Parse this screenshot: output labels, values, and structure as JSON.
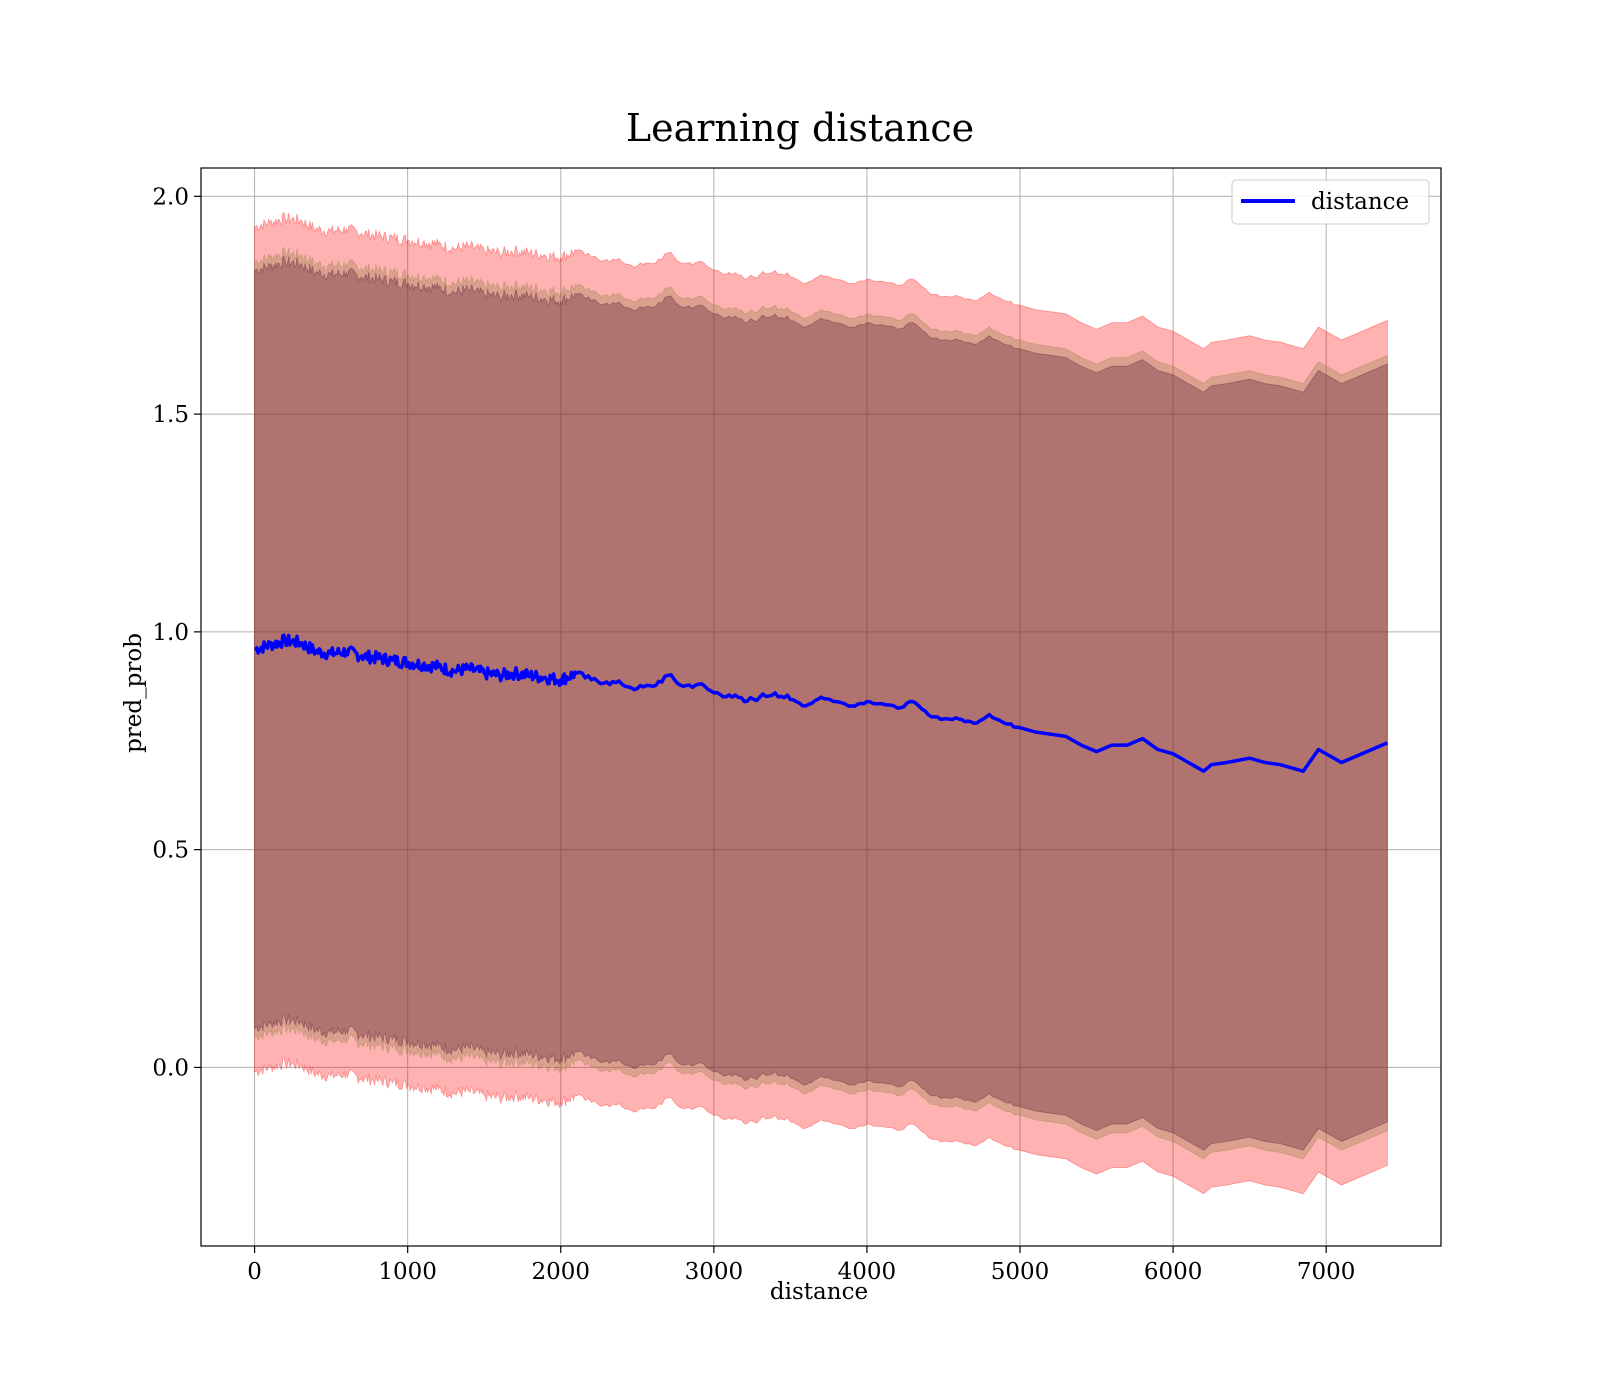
{
  "chart_data": {
    "type": "line",
    "title": "Learning distance",
    "xlabel": "distance",
    "ylabel": "pred_prob",
    "xlim": [
      -350,
      7750
    ],
    "ylim": [
      -0.41,
      2.065
    ],
    "xticks": [
      "0",
      "1000",
      "2000",
      "3000",
      "4000",
      "5000",
      "6000",
      "7000"
    ],
    "yticks": [
      "0.0",
      "0.5",
      "1.0",
      "1.5",
      "2.0"
    ],
    "grid": true,
    "legend": {
      "position": "top-right",
      "entries": [
        "distance"
      ]
    },
    "colors": {
      "line": "#0000ff",
      "band": "#ff0000",
      "band_inner": "#4d0a2a",
      "band_mid": "#8a7a3a",
      "grid": "#b0b0b0"
    },
    "band_alphas": [
      0.3,
      0.3,
      0.3
    ],
    "band_widths": [
      0.97,
      0.89,
      0.87
    ],
    "series": [
      {
        "name": "distance",
        "x": [
          0,
          100,
          200,
          300,
          400,
          500,
          600,
          700,
          800,
          900,
          1000,
          1100,
          1200,
          1300,
          1400,
          1500,
          1600,
          1700,
          1800,
          1900,
          2000,
          2100,
          2200,
          2300,
          2400,
          2500,
          2600,
          2700,
          2800,
          2900,
          3000,
          3100,
          3200,
          3300,
          3400,
          3500,
          3600,
          3700,
          3800,
          3900,
          4000,
          4100,
          4200,
          4300,
          4400,
          4500,
          4600,
          4700,
          4800,
          4900,
          5000,
          5100,
          5200,
          5300,
          5400,
          5500,
          5600,
          5700,
          5800,
          5900,
          6000,
          6100,
          6200,
          6250,
          6350,
          6500,
          6600,
          6700,
          6850,
          6950,
          7100,
          7400
        ],
        "y": [
          0.96,
          0.97,
          0.98,
          0.975,
          0.955,
          0.95,
          0.955,
          0.945,
          0.94,
          0.935,
          0.93,
          0.925,
          0.92,
          0.91,
          0.915,
          0.905,
          0.9,
          0.905,
          0.9,
          0.895,
          0.89,
          0.905,
          0.89,
          0.885,
          0.88,
          0.87,
          0.875,
          0.9,
          0.875,
          0.88,
          0.86,
          0.855,
          0.84,
          0.85,
          0.86,
          0.845,
          0.83,
          0.85,
          0.84,
          0.83,
          0.84,
          0.835,
          0.825,
          0.84,
          0.81,
          0.8,
          0.8,
          0.79,
          0.81,
          0.79,
          0.78,
          0.77,
          0.765,
          0.76,
          0.74,
          0.725,
          0.74,
          0.74,
          0.755,
          0.73,
          0.72,
          0.7,
          0.68,
          0.695,
          0.7,
          0.71,
          0.7,
          0.695,
          0.68,
          0.73,
          0.7,
          0.745
        ]
      }
    ]
  }
}
